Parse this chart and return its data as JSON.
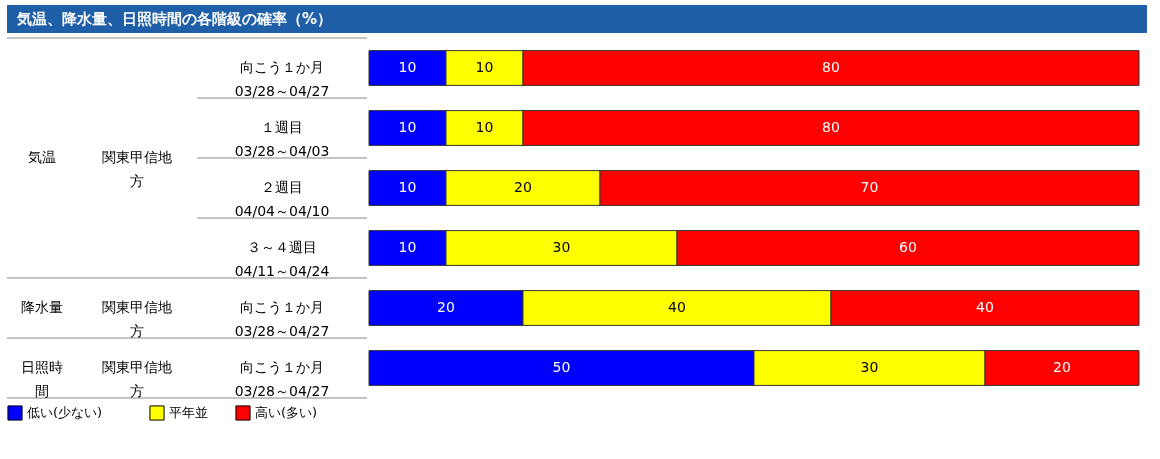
{
  "chart_data": {
    "type": "bar",
    "orientation": "horizontal",
    "stacked": true,
    "data_labels": true,
    "legend": "bottom left",
    "title": "気温、降水量、日照時間の各階級の確率（%）",
    "categories": [
      "向こう１か月\n03/28～04/27",
      "１週目\n03/28～04/03",
      "２週目\n04/04～04/10",
      "３～４週目\n04/11～04/24",
      "向こう１か月\n03/28～04/27",
      "向こう１か月\n03/28～04/27"
    ],
    "series": [
      {
        "name": "低い(少ない)",
        "color": "#0000ff",
        "values": [
          10,
          10,
          10,
          10,
          20,
          50
        ]
      },
      {
        "name": "平年並",
        "color": "#ffff00",
        "values": [
          10,
          10,
          20,
          30,
          40,
          30
        ]
      },
      {
        "name": "高い(多い)",
        "color": "#ff0000",
        "values": [
          80,
          80,
          70,
          60,
          40,
          20
        ]
      }
    ],
    "annotations": [
      "気温",
      "関東甲信地方",
      "降水量",
      "関東甲信地方",
      "日照時間",
      "関東甲信地方"
    ]
  }
}
